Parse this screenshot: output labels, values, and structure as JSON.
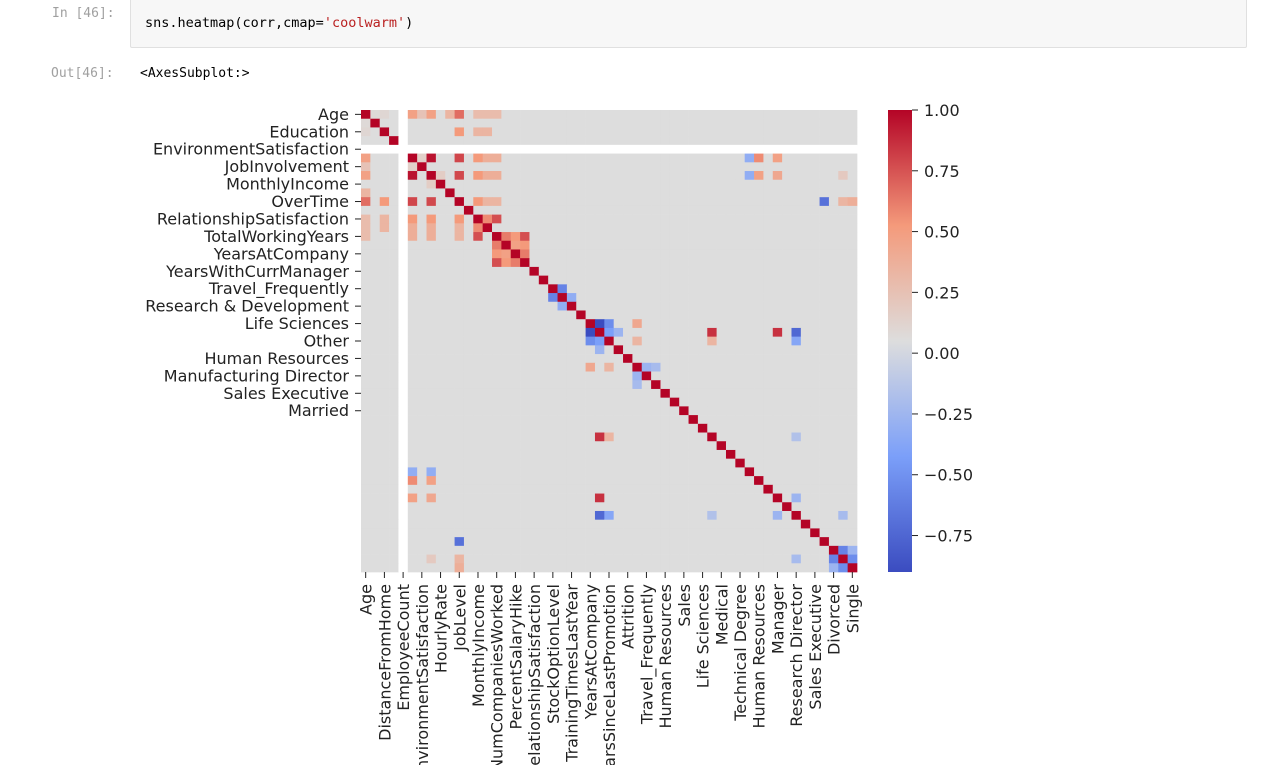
{
  "cell": {
    "in_prompt": "In [46]:",
    "code_prefix": "sns.heatmap(corr,cmap=",
    "code_string": "'coolwarm'",
    "code_suffix": ")",
    "out_prompt": "Out[46]:",
    "output_text": "<AxesSubplot:>"
  },
  "chart_data": {
    "type": "heatmap",
    "colormap": "coolwarm",
    "colors": {
      "low": "#3b4cc0",
      "mid": "#dddddd",
      "high": "#b40426",
      "nan_gap": "#ffffff"
    },
    "ylabels": [
      "Age",
      "Education",
      "EnvironmentSatisfaction",
      "JobInvolvement",
      "MonthlyIncome",
      "OverTime",
      "RelationshipSatisfaction",
      "TotalWorkingYears",
      "YearsAtCompany",
      "YearsWithCurrManager",
      "Travel_Frequently",
      "Research & Development",
      "Life Sciences",
      "Other",
      "Human Resources",
      "Manufacturing Director",
      "Sales Executive",
      "Married"
    ],
    "xlabels": [
      "Age",
      "DistanceFromHome",
      "EmployeeCount",
      "EnvironmentSatisfaction",
      "HourlyRate",
      "JobLevel",
      "MonthlyIncome",
      "NumCompaniesWorked",
      "PercentSalaryHike",
      "RelationshipSatisfaction",
      "StockOptionLevel",
      "TrainingTimesLastYear",
      "YearsAtCompany",
      "YearsSinceLastPromotion",
      "Attrition",
      "Travel_Frequently",
      "Human Resources",
      "Sales",
      "Life Sciences",
      "Medical",
      "Technical Degree",
      "Human Resources",
      "Manager",
      "Research Director",
      "Sales Executive",
      "Divorced",
      "Single"
    ],
    "colorbar": {
      "range": [
        -0.9,
        1.0
      ],
      "ticks": [
        "1.00",
        "0.75",
        "0.50",
        "0.25",
        "0.00",
        "−0.25",
        "−0.50",
        "−0.75"
      ]
    },
    "ylabel_row_indices": [
      0,
      2,
      4,
      6,
      8,
      10,
      12,
      14,
      16,
      18,
      20,
      22,
      24,
      26,
      28,
      30,
      32,
      34
    ],
    "xlabel_col_indices": [
      0,
      2,
      4,
      6,
      8,
      10,
      12,
      14,
      16,
      18,
      20,
      22,
      24,
      26,
      28,
      30,
      32,
      34,
      36,
      38,
      40,
      42,
      44,
      46,
      48,
      50,
      52
    ],
    "n": 53,
    "nan_index": 4,
    "base_value": 0.0,
    "cells": [
      [
        0,
        1,
        0.03
      ],
      [
        0,
        2,
        0.05
      ],
      [
        0,
        5,
        0.45
      ],
      [
        0,
        6,
        0.2
      ],
      [
        0,
        7,
        0.45
      ],
      [
        0,
        9,
        0.3
      ],
      [
        0,
        10,
        0.65
      ],
      [
        0,
        12,
        0.25
      ],
      [
        0,
        13,
        0.25
      ],
      [
        0,
        14,
        0.25
      ],
      [
        5,
        6,
        0.1
      ],
      [
        7,
        8,
        0.12
      ],
      [
        5,
        7,
        0.95
      ],
      [
        5,
        10,
        0.78
      ],
      [
        5,
        12,
        0.5
      ],
      [
        5,
        13,
        0.35
      ],
      [
        5,
        14,
        0.35
      ],
      [
        7,
        10,
        0.77
      ],
      [
        7,
        12,
        0.5
      ],
      [
        7,
        13,
        0.35
      ],
      [
        7,
        14,
        0.35
      ],
      [
        2,
        10,
        0.5
      ],
      [
        2,
        12,
        0.3
      ],
      [
        2,
        13,
        0.3
      ],
      [
        14,
        15,
        0.6
      ],
      [
        14,
        16,
        0.5
      ],
      [
        14,
        17,
        0.75
      ],
      [
        15,
        16,
        0.45
      ],
      [
        15,
        17,
        0.5
      ],
      [
        16,
        17,
        0.6
      ],
      [
        10,
        12,
        0.5
      ],
      [
        10,
        13,
        0.3
      ],
      [
        10,
        14,
        0.3
      ],
      [
        12,
        13,
        0.55
      ],
      [
        12,
        14,
        0.75
      ],
      [
        20,
        21,
        -0.6
      ],
      [
        21,
        22,
        -0.35
      ],
      [
        24,
        25,
        -0.9
      ],
      [
        24,
        26,
        -0.55
      ],
      [
        24,
        29,
        0.4
      ],
      [
        25,
        26,
        -0.45
      ],
      [
        25,
        27,
        -0.3
      ],
      [
        26,
        29,
        0.3
      ],
      [
        25,
        37,
        0.85
      ],
      [
        26,
        37,
        0.3
      ],
      [
        29,
        30,
        -0.3
      ],
      [
        29,
        31,
        -0.25
      ],
      [
        25,
        44,
        0.85
      ],
      [
        25,
        46,
        -0.75
      ],
      [
        26,
        46,
        -0.4
      ],
      [
        5,
        41,
        -0.35
      ],
      [
        5,
        42,
        0.55
      ],
      [
        5,
        44,
        0.45
      ],
      [
        7,
        41,
        -0.35
      ],
      [
        7,
        42,
        0.45
      ],
      [
        7,
        44,
        0.4
      ],
      [
        50,
        51,
        -0.6
      ],
      [
        51,
        52,
        -0.55
      ],
      [
        50,
        52,
        -0.3
      ],
      [
        10,
        52,
        0.35
      ],
      [
        10,
        51,
        0.3
      ],
      [
        10,
        49,
        -0.7
      ],
      [
        7,
        51,
        0.15
      ],
      [
        46,
        51,
        -0.25
      ],
      [
        44,
        46,
        -0.3
      ],
      [
        37,
        46,
        -0.2
      ]
    ]
  }
}
